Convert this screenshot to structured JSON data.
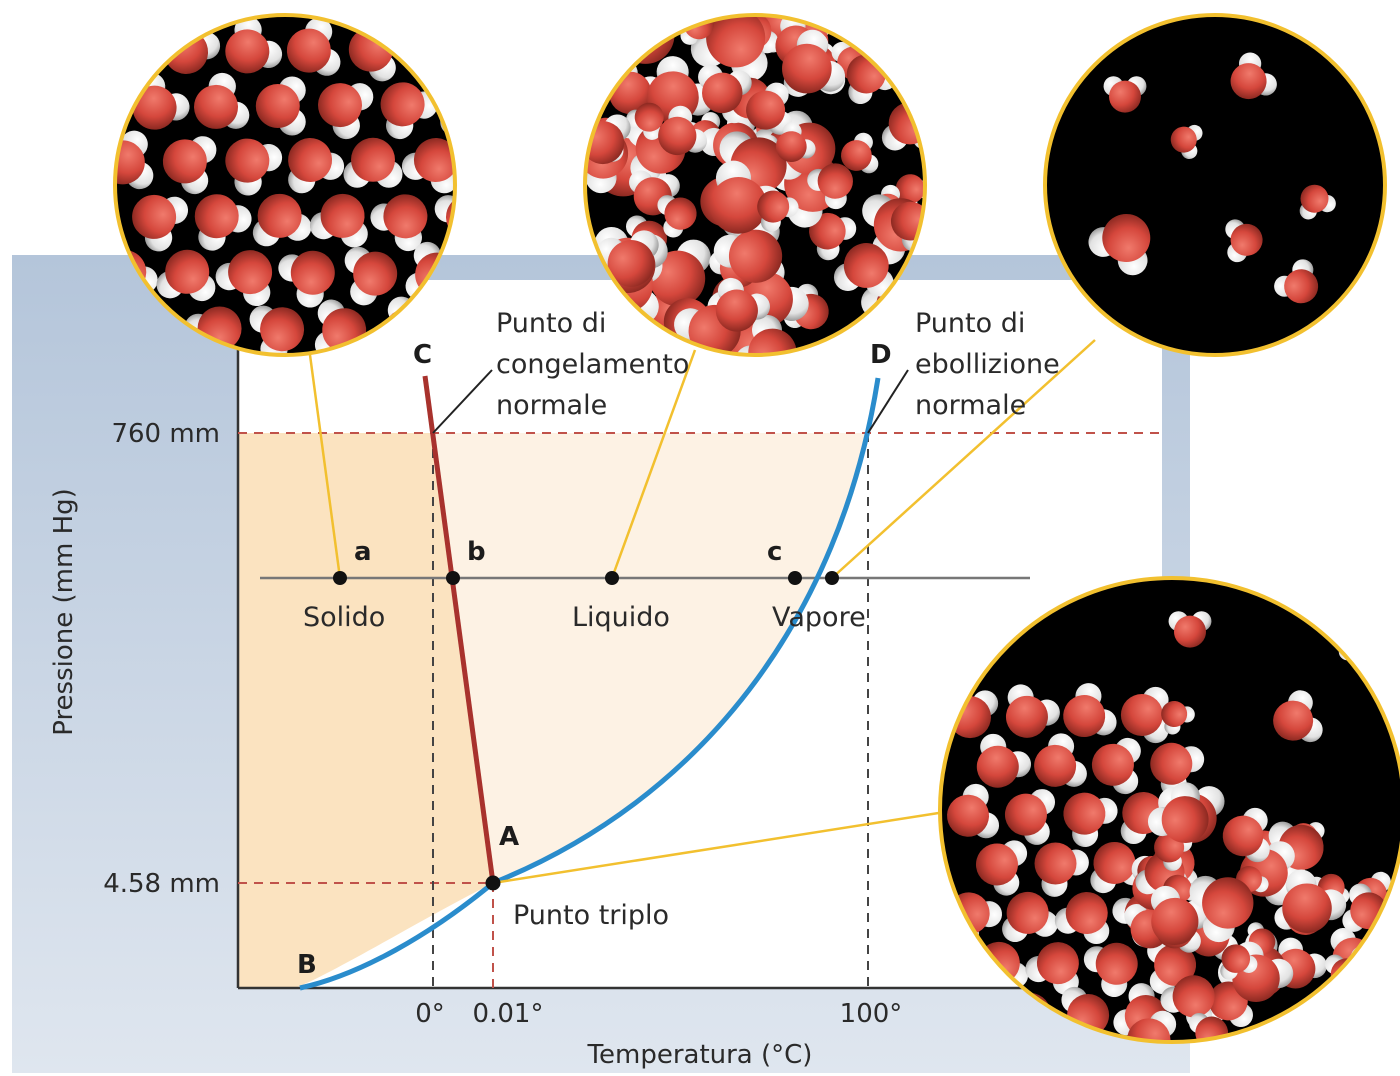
{
  "diagram": {
    "y_axis_title": "Pressione (mm Hg)",
    "x_axis_title": "Temperatura (°C)",
    "y_ticks": {
      "p760": "760 mm",
      "p458": "4.58 mm"
    },
    "x_ticks": {
      "t0": "0°",
      "t001": "0.01°",
      "t100": "100°"
    },
    "curve_labels": {
      "A": "A",
      "B": "B",
      "C": "C",
      "D": "D"
    },
    "point_labels": {
      "a": "a",
      "b": "b",
      "c": "c"
    },
    "phase_labels": {
      "solid": "Solido",
      "liquid": "Liquido",
      "vapor": "Vapore"
    },
    "freezing_label": [
      "Punto di",
      "congelamento",
      "normale"
    ],
    "boiling_label": [
      "Punto di",
      "ebollizione",
      "normale"
    ],
    "triple_label": "Punto triplo",
    "colors": {
      "solid_region": "#fbe3c0",
      "liquid_region": "#fdf3e6",
      "melting_curve": "#a8322d",
      "vapor_curve": "#2a8ccc",
      "callout_line": "#f2c02f",
      "guide_dashed": "#c0524a",
      "frame": "#9fb4cc",
      "molecule_oxygen": "#d5473c",
      "molecule_hydrogen": "#e8e8e8"
    },
    "insets": [
      {
        "name": "solid-molecules-inset",
        "icon": "ice-lattice-icon"
      },
      {
        "name": "liquid-molecules-inset",
        "icon": "liquid-water-icon"
      },
      {
        "name": "vapor-molecules-inset",
        "icon": "water-vapor-icon"
      },
      {
        "name": "triple-point-molecules-inset",
        "icon": "triple-phase-icon"
      }
    ]
  }
}
